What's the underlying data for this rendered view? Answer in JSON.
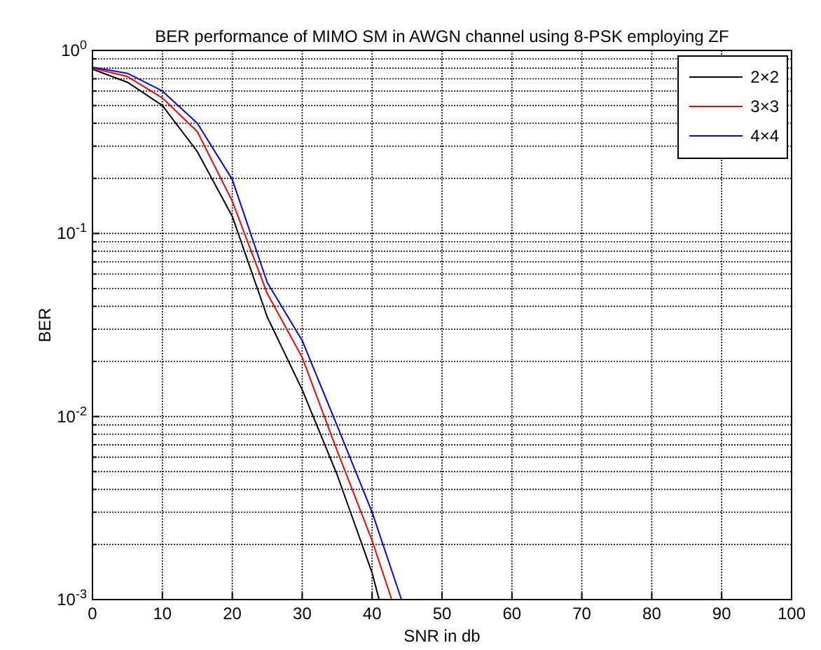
{
  "chart_data": {
    "type": "line",
    "title": "BER performance of MIMO SM in AWGN channel using 8-PSK employing ZF",
    "xlabel": "SNR in db",
    "ylabel": "BER",
    "series": [
      {
        "name": "2×2",
        "color": "#000000",
        "x": [
          0,
          5,
          10,
          15,
          20,
          25,
          30,
          35,
          40,
          41
        ],
        "values": [
          0.79,
          0.67,
          0.5,
          0.28,
          0.124,
          0.035,
          0.014,
          0.0048,
          0.0014,
          0.001
        ]
      },
      {
        "name": "3×3",
        "color": "#ff0000",
        "x": [
          0,
          5,
          10,
          15,
          20,
          25,
          30,
          35,
          40,
          42.8
        ],
        "values": [
          0.8,
          0.72,
          0.55,
          0.36,
          0.15,
          0.047,
          0.021,
          0.0065,
          0.0021,
          0.001
        ]
      },
      {
        "name": "4×4",
        "color": "#0000ff",
        "x": [
          0,
          5,
          10,
          15,
          20,
          25,
          30,
          35,
          40,
          44.2
        ],
        "values": [
          0.81,
          0.75,
          0.6,
          0.4,
          0.197,
          0.054,
          0.026,
          0.0089,
          0.003,
          0.001
        ]
      }
    ],
    "xlim": [
      0,
      100
    ],
    "xticks": [
      0,
      10,
      20,
      30,
      40,
      50,
      60,
      70,
      80,
      90,
      100
    ],
    "ylim": [
      0.001,
      1
    ],
    "log": "y",
    "yticks": [
      {
        "value": 0.001,
        "label": "10$^{-3}$"
      },
      {
        "value": 0.002,
        "label": null
      },
      {
        "value": 0.003,
        "label": null
      },
      {
        "value": 0.004,
        "label": null
      },
      {
        "value": 0.005,
        "label": null
      },
      {
        "value": 0.006,
        "label": null
      },
      {
        "value": 0.007,
        "label": null
      },
      {
        "value": 0.008,
        "label": null
      },
      {
        "value": 0.009,
        "label": null
      },
      {
        "value": 0.01,
        "label": "10$^{-2}$"
      },
      {
        "value": 0.02,
        "label": null
      },
      {
        "value": 0.03,
        "label": null
      },
      {
        "value": 0.04,
        "label": null
      },
      {
        "value": 0.05,
        "label": null
      },
      {
        "value": 0.06,
        "label": null
      },
      {
        "value": 0.07,
        "label": null
      },
      {
        "value": 0.08,
        "label": null
      },
      {
        "value": 0.09,
        "label": null
      },
      {
        "value": 0.1,
        "label": "10$^{-1}$"
      },
      {
        "value": 0.2,
        "label": null
      },
      {
        "value": 0.3,
        "label": null
      },
      {
        "value": 0.4,
        "label": null
      },
      {
        "value": 0.5,
        "label": null
      },
      {
        "value": 0.6,
        "label": null
      },
      {
        "value": 0.7,
        "label": null
      },
      {
        "value": 0.8,
        "label": null
      },
      {
        "value": 0.9,
        "label": null
      },
      {
        "value": 1,
        "label": "10$^{0}$"
      }
    ],
    "grid": true,
    "legend": "top right",
    "marker": "none",
    "line_style": "solid"
  }
}
